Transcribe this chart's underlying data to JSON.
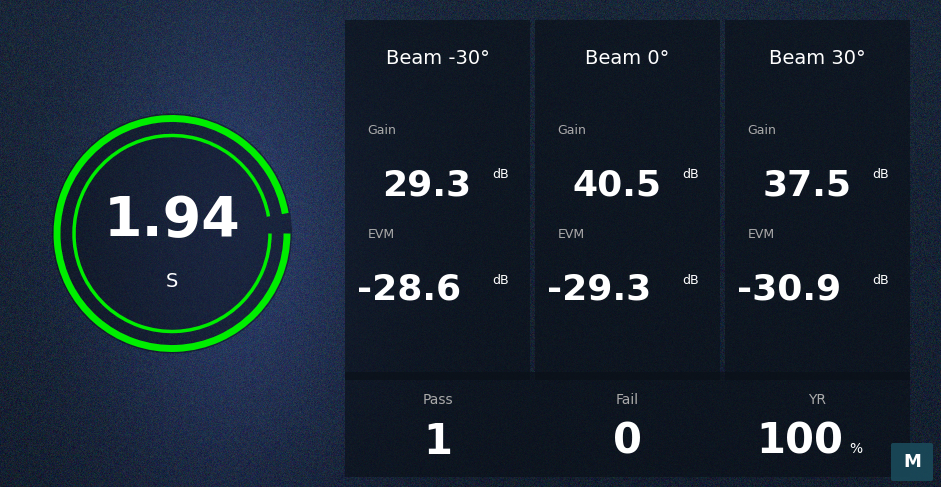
{
  "fig_width": 9.41,
  "fig_height": 4.87,
  "dpi": 100,
  "green_color": "#00ee00",
  "white_color": "#ffffff",
  "gray_color": "#aaaaaa",
  "timer_value": "1.94",
  "timer_unit": "S",
  "beams": [
    {
      "label": "Beam -30°",
      "gain_label": "Gain",
      "gain_value": "29.3",
      "gain_unit": "dB",
      "evm_label": "EVM",
      "evm_value": "-28.6",
      "evm_unit": "dB"
    },
    {
      "label": "Beam 0°",
      "gain_label": "Gain",
      "gain_value": "40.5",
      "gain_unit": "dB",
      "evm_label": "EVM",
      "evm_value": "-29.3",
      "evm_unit": "dB"
    },
    {
      "label": "Beam 30°",
      "gain_label": "Gain",
      "gain_value": "37.5",
      "gain_unit": "dB",
      "evm_label": "EVM",
      "evm_value": "-30.9",
      "evm_unit": "dB"
    }
  ],
  "summary": [
    {
      "label": "Pass",
      "value": "1",
      "unit": ""
    },
    {
      "label": "Fail",
      "value": "0",
      "unit": ""
    },
    {
      "label": "YR",
      "value": "100",
      "unit": "%"
    }
  ],
  "bg_colors": {
    "top_left": "#1c2840",
    "top_right": "#0d1520",
    "bottom_left": "#253550",
    "bottom_right": "#151e2e"
  },
  "panel_bg": "#0a1018",
  "panel_alpha": 0.72,
  "logo_bg": "#1a4a5a"
}
